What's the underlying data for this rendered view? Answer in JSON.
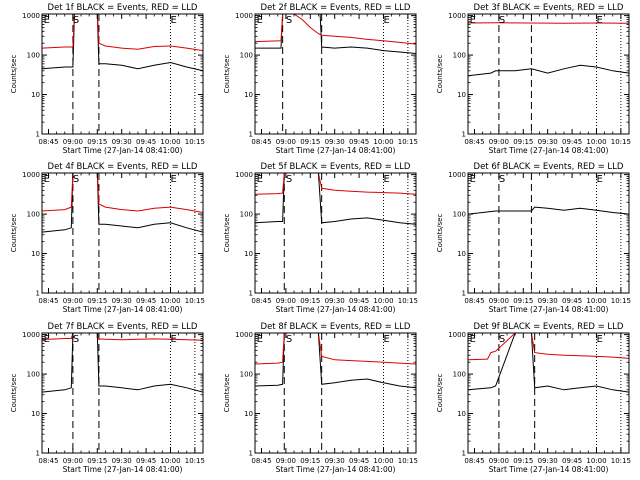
{
  "figure": {
    "colors": {
      "events": "#000000",
      "lld": "#dd0000",
      "background": "#ffffff"
    },
    "x_axis_label": "Start Time (27-Jan-14 08:41:00)",
    "y_axis_label": "Counts/sec",
    "x_tick_labels": [
      "08:45",
      "09:00",
      "09:15",
      "09:30",
      "09:45",
      "10:00",
      "10:15"
    ],
    "y_tick_labels": [
      "1",
      "10",
      "100",
      "1000"
    ],
    "y_scale": "log"
  },
  "chart_data": [
    {
      "type": "line",
      "title": "Det 1f BLACK = Events, RED = LLD",
      "xlim": [
        "08:41",
        "10:20"
      ],
      "ylim": [
        1,
        1100
      ],
      "yscale": "log",
      "series": [
        {
          "name": "BLACK = Events",
          "color": "#000000",
          "x": [
            "08:41",
            "08:55",
            "09:00",
            "09:01",
            "09:15",
            "09:16",
            "09:20",
            "09:30",
            "09:40",
            "09:50",
            "10:00",
            "10:10",
            "10:20"
          ],
          "y": [
            45,
            50,
            50,
            1100,
            1100,
            60,
            60,
            55,
            45,
            55,
            65,
            50,
            40
          ]
        },
        {
          "name": "RED = LLD",
          "color": "#dd0000",
          "x": [
            "08:41",
            "08:55",
            "09:00",
            "09:01",
            "09:15",
            "09:16",
            "09:20",
            "09:30",
            "09:40",
            "09:50",
            "10:00",
            "10:10",
            "10:20"
          ],
          "y": [
            150,
            160,
            160,
            1100,
            1100,
            200,
            170,
            150,
            140,
            165,
            170,
            150,
            130
          ]
        }
      ],
      "markers": [
        {
          "label": "E",
          "x": "08:42"
        },
        {
          "label": "S",
          "x": "09:00"
        },
        {
          "label": "E",
          "x": "10:00"
        }
      ],
      "vlines_dashed": [
        "09:00",
        "09:16"
      ],
      "vlines_dotted": [
        "10:00",
        "10:15"
      ]
    },
    {
      "type": "line",
      "title": "Det 2f BLACK = Events, RED = LLD",
      "xlim": [
        "08:41",
        "10:20"
      ],
      "ylim": [
        1,
        1100
      ],
      "yscale": "log",
      "series": [
        {
          "name": "BLACK = Events",
          "color": "#000000",
          "x": [
            "08:41",
            "08:57",
            "08:58",
            "09:05",
            "09:15",
            "09:21",
            "09:22",
            "09:30",
            "09:40",
            "09:50",
            "10:00",
            "10:10",
            "10:20"
          ],
          "y": [
            150,
            150,
            1100,
            1100,
            1100,
            1100,
            160,
            150,
            160,
            150,
            130,
            120,
            110
          ]
        },
        {
          "name": "RED = LLD",
          "color": "#dd0000",
          "x": [
            "08:41",
            "08:57",
            "08:58",
            "09:05",
            "09:10",
            "09:15",
            "09:20",
            "09:22",
            "09:30",
            "09:40",
            "09:50",
            "10:00",
            "10:10",
            "10:20"
          ],
          "y": [
            220,
            230,
            1100,
            1100,
            800,
            500,
            350,
            320,
            300,
            280,
            250,
            230,
            210,
            190
          ]
        }
      ],
      "markers": [
        {
          "label": "E",
          "x": "08:42"
        },
        {
          "label": "S",
          "x": "09:00"
        },
        {
          "label": "E",
          "x": "10:00"
        }
      ],
      "vlines_dashed": [
        "08:58",
        "09:22"
      ],
      "vlines_dotted": [
        "10:00",
        "10:15"
      ]
    },
    {
      "type": "line",
      "title": "Det 3f BLACK = Events, RED = LLD",
      "xlim": [
        "08:41",
        "10:20"
      ],
      "ylim": [
        1,
        1100
      ],
      "yscale": "log",
      "series": [
        {
          "name": "BLACK = Events",
          "color": "#000000",
          "x": [
            "08:41",
            "08:55",
            "08:58",
            "09:10",
            "09:20",
            "09:30",
            "09:40",
            "09:50",
            "10:00",
            "10:10",
            "10:20"
          ],
          "y": [
            30,
            35,
            40,
            40,
            45,
            35,
            45,
            55,
            50,
            40,
            35
          ]
        },
        {
          "name": "RED = LLD",
          "color": "#dd0000",
          "x": [
            "08:41",
            "09:00",
            "09:20",
            "09:40",
            "10:00",
            "10:20"
          ],
          "y": [
            650,
            660,
            650,
            640,
            650,
            640
          ]
        }
      ],
      "markers": [
        {
          "label": "E",
          "x": "08:42"
        },
        {
          "label": "S",
          "x": "09:00"
        },
        {
          "label": "E",
          "x": "10:00"
        }
      ],
      "vlines_dashed": [
        "09:00",
        "09:20"
      ],
      "vlines_dotted": [
        "10:00",
        "10:15"
      ]
    },
    {
      "type": "line",
      "title": "Det 4f BLACK = Events, RED = LLD",
      "xlim": [
        "08:41",
        "10:20"
      ],
      "ylim": [
        1,
        1100
      ],
      "yscale": "log",
      "series": [
        {
          "name": "BLACK = Events",
          "color": "#000000",
          "x": [
            "08:41",
            "08:55",
            "08:59",
            "09:00",
            "09:15",
            "09:16",
            "09:20",
            "09:30",
            "09:40",
            "09:50",
            "10:00",
            "10:10",
            "10:20"
          ],
          "y": [
            35,
            40,
            45,
            1100,
            1100,
            55,
            55,
            50,
            45,
            55,
            60,
            45,
            35
          ]
        },
        {
          "name": "RED = LLD",
          "color": "#dd0000",
          "x": [
            "08:41",
            "08:55",
            "08:59",
            "09:00",
            "09:15",
            "09:16",
            "09:20",
            "09:30",
            "09:40",
            "09:50",
            "10:00",
            "10:10",
            "10:20"
          ],
          "y": [
            120,
            130,
            150,
            1100,
            1100,
            180,
            150,
            130,
            120,
            140,
            150,
            130,
            110
          ]
        }
      ],
      "markers": [
        {
          "label": "E",
          "x": "08:42"
        },
        {
          "label": "S",
          "x": "09:00"
        },
        {
          "label": "E",
          "x": "10:00"
        }
      ],
      "vlines_dashed": [
        "09:00",
        "09:16"
      ],
      "vlines_dotted": [
        "10:00",
        "10:15"
      ]
    },
    {
      "type": "line",
      "title": "Det 5f BLACK = Events, RED = LLD",
      "xlim": [
        "08:41",
        "10:20"
      ],
      "ylim": [
        1,
        1100
      ],
      "yscale": "log",
      "series": [
        {
          "name": "BLACK = Events",
          "color": "#000000",
          "x": [
            "08:41",
            "08:55",
            "08:58",
            "08:59",
            "09:20",
            "09:22",
            "09:30",
            "09:40",
            "09:50",
            "10:00",
            "10:10",
            "10:20"
          ],
          "y": [
            60,
            65,
            65,
            1100,
            1100,
            60,
            65,
            75,
            80,
            70,
            60,
            55
          ]
        },
        {
          "name": "RED = LLD",
          "color": "#dd0000",
          "x": [
            "08:41",
            "08:55",
            "08:58",
            "08:59",
            "09:20",
            "09:22",
            "09:30",
            "09:40",
            "09:50",
            "10:00",
            "10:10",
            "10:20"
          ],
          "y": [
            320,
            330,
            340,
            1100,
            1100,
            450,
            400,
            380,
            360,
            350,
            340,
            320
          ]
        }
      ],
      "markers": [
        {
          "label": "E",
          "x": "08:42"
        },
        {
          "label": "S",
          "x": "09:00"
        },
        {
          "label": "E",
          "x": "10:00"
        }
      ],
      "vlines_dashed": [
        "08:59",
        "09:22"
      ],
      "vlines_dotted": [
        "10:00",
        "10:15"
      ]
    },
    {
      "type": "line",
      "title": "Det 6f BLACK = Events, RED = LLD",
      "xlim": [
        "08:41",
        "10:20"
      ],
      "ylim": [
        1,
        1100
      ],
      "yscale": "log",
      "series": [
        {
          "name": "BLACK = Events",
          "color": "#000000",
          "x": [
            "08:41",
            "08:50",
            "08:58",
            "09:10",
            "09:20",
            "09:22",
            "09:30",
            "09:40",
            "09:50",
            "10:00",
            "10:10",
            "10:20"
          ],
          "y": [
            100,
            110,
            120,
            120,
            120,
            150,
            140,
            125,
            140,
            125,
            110,
            100
          ]
        }
      ],
      "markers": [
        {
          "label": "E",
          "x": "08:42"
        },
        {
          "label": "S",
          "x": "09:00"
        },
        {
          "label": "E",
          "x": "10:00"
        }
      ],
      "vlines_dashed": [
        "09:00",
        "09:20"
      ],
      "vlines_dotted": [
        "10:00",
        "10:15"
      ]
    },
    {
      "type": "line",
      "title": "Det 7f BLACK = Events, RED = LLD",
      "xlim": [
        "08:41",
        "10:20"
      ],
      "ylim": [
        1,
        1100
      ],
      "yscale": "log",
      "series": [
        {
          "name": "BLACK = Events",
          "color": "#000000",
          "x": [
            "08:41",
            "08:55",
            "08:59",
            "09:00",
            "09:15",
            "09:16",
            "09:20",
            "09:30",
            "09:40",
            "09:50",
            "10:00",
            "10:10",
            "10:20"
          ],
          "y": [
            35,
            40,
            45,
            1100,
            1100,
            50,
            50,
            45,
            40,
            50,
            55,
            45,
            35
          ]
        },
        {
          "name": "RED = LLD",
          "color": "#dd0000",
          "x": [
            "08:41",
            "08:55",
            "08:59",
            "09:00",
            "09:15",
            "09:16",
            "09:20",
            "09:30",
            "09:40",
            "09:50",
            "10:00",
            "10:10",
            "10:20"
          ],
          "y": [
            750,
            800,
            800,
            1100,
            1100,
            780,
            760,
            740,
            760,
            780,
            760,
            740,
            720
          ]
        }
      ],
      "markers": [
        {
          "label": "E",
          "x": "08:42"
        },
        {
          "label": "S",
          "x": "09:00"
        },
        {
          "label": "E",
          "x": "10:00"
        }
      ],
      "vlines_dashed": [
        "09:00",
        "09:16"
      ],
      "vlines_dotted": [
        "10:00",
        "10:15"
      ]
    },
    {
      "type": "line",
      "title": "Det 8f BLACK = Events, RED = LLD",
      "xlim": [
        "08:41",
        "10:20"
      ],
      "ylim": [
        1,
        1100
      ],
      "yscale": "log",
      "series": [
        {
          "name": "BLACK = Events",
          "color": "#000000",
          "x": [
            "08:41",
            "08:55",
            "08:58",
            "08:59",
            "09:20",
            "09:22",
            "09:30",
            "09:40",
            "09:50",
            "10:00",
            "10:10",
            "10:20"
          ],
          "y": [
            50,
            52,
            55,
            1100,
            1100,
            55,
            60,
            70,
            75,
            60,
            50,
            45
          ]
        },
        {
          "name": "RED = LLD",
          "color": "#dd0000",
          "x": [
            "08:41",
            "08:55",
            "08:58",
            "08:59",
            "09:20",
            "09:22",
            "09:30",
            "09:40",
            "09:50",
            "10:00",
            "10:10",
            "10:20"
          ],
          "y": [
            180,
            190,
            200,
            1100,
            1100,
            280,
            230,
            220,
            210,
            200,
            190,
            180
          ]
        }
      ],
      "markers": [
        {
          "label": "E",
          "x": "08:42"
        },
        {
          "label": "S",
          "x": "09:00"
        },
        {
          "label": "E",
          "x": "10:00"
        }
      ],
      "vlines_dashed": [
        "08:59",
        "09:22"
      ],
      "vlines_dotted": [
        "10:00",
        "10:15"
      ]
    },
    {
      "type": "line",
      "title": "Det 9f BLACK = Events, RED = LLD",
      "xlim": [
        "08:41",
        "10:20"
      ],
      "ylim": [
        1,
        1100
      ],
      "yscale": "log",
      "series": [
        {
          "name": "BLACK = Events",
          "color": "#000000",
          "x": [
            "08:41",
            "08:55",
            "08:58",
            "09:10",
            "09:20",
            "09:22",
            "09:30",
            "09:40",
            "09:50",
            "10:00",
            "10:10",
            "10:20"
          ],
          "y": [
            40,
            45,
            50,
            1100,
            1100,
            45,
            50,
            40,
            45,
            50,
            40,
            35
          ]
        },
        {
          "name": "RED = LLD",
          "color": "#dd0000",
          "x": [
            "08:41",
            "08:53",
            "08:55",
            "08:58",
            "09:10",
            "09:20",
            "09:22",
            "09:30",
            "09:40",
            "09:50",
            "10:00",
            "10:10",
            "10:20"
          ],
          "y": [
            230,
            240,
            350,
            380,
            1100,
            1100,
            350,
            320,
            300,
            290,
            280,
            270,
            250
          ]
        }
      ],
      "markers": [
        {
          "label": "E",
          "x": "08:42"
        },
        {
          "label": "S",
          "x": "09:00"
        },
        {
          "label": "E",
          "x": "10:00"
        }
      ],
      "vlines_dashed": [
        "09:00",
        "09:22"
      ],
      "vlines_dotted": [
        "10:00",
        "10:15"
      ]
    }
  ]
}
